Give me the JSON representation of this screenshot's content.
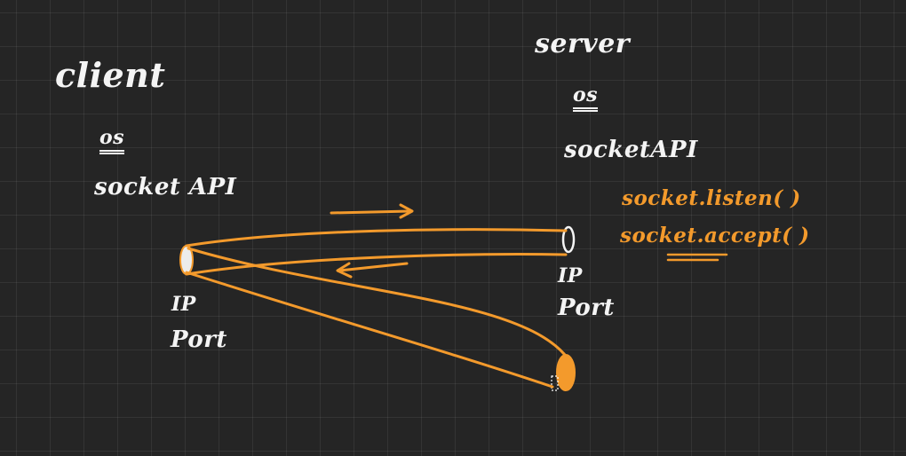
{
  "client": {
    "title": "client",
    "os": "os",
    "socket_api": "socket API",
    "ip": "IP",
    "port": "Port"
  },
  "server": {
    "title": "server",
    "os": "os",
    "socket_api": "socketAPI",
    "ip": "IP",
    "port": "Port",
    "listen_call": "socket.listen( )",
    "accept_call": "socket.accept( )"
  },
  "colors": {
    "background": "#252525",
    "ink": "#f4f4f4",
    "accent": "#f39a2c"
  }
}
